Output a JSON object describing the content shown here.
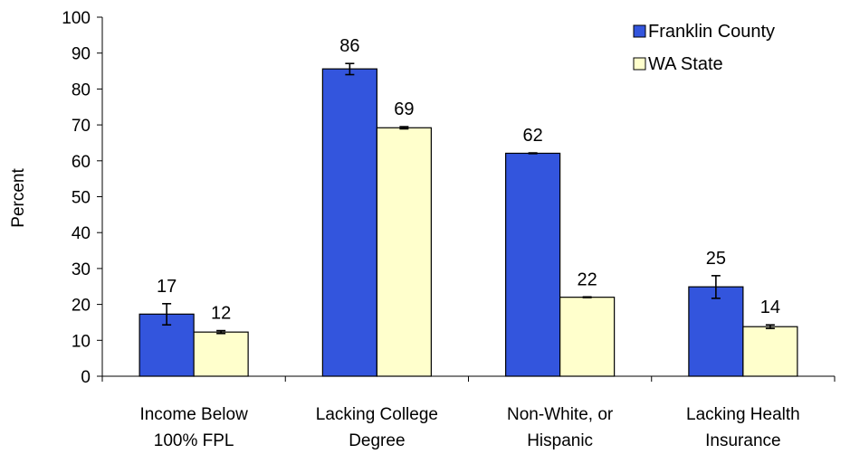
{
  "chart_data": {
    "type": "bar",
    "categories": [
      [
        "Income Below",
        "100% FPL"
      ],
      [
        "Lacking College",
        "Degree"
      ],
      [
        "Non-White, or",
        "Hispanic"
      ],
      [
        "Lacking Health",
        "Insurance"
      ]
    ],
    "series": [
      {
        "name": "Franklin County",
        "color": "#3355dd",
        "values": [
          17.3,
          85.6,
          62.1,
          24.9
        ],
        "labels": [
          "17",
          "86",
          "62",
          "25"
        ],
        "error": [
          [
            14.3,
            20.2
          ],
          [
            84.0,
            87.1
          ],
          [
            62.0,
            62.2
          ],
          [
            21.7,
            28.0
          ]
        ]
      },
      {
        "name": "WA State",
        "color": "#ffffcc",
        "values": [
          12.3,
          69.2,
          22.0,
          13.8
        ],
        "labels": [
          "12",
          "69",
          "22",
          "14"
        ],
        "error": [
          [
            11.9,
            12.7
          ],
          [
            68.9,
            69.5
          ],
          [
            21.9,
            22.1
          ],
          [
            13.3,
            14.3
          ]
        ]
      }
    ],
    "ylabel": "Percent",
    "xlabel": "",
    "title": "",
    "ylim": [
      0,
      100
    ],
    "yticks": [
      0,
      10,
      20,
      30,
      40,
      50,
      60,
      70,
      80,
      90,
      100
    ],
    "grid": false,
    "legend": "top-right"
  }
}
